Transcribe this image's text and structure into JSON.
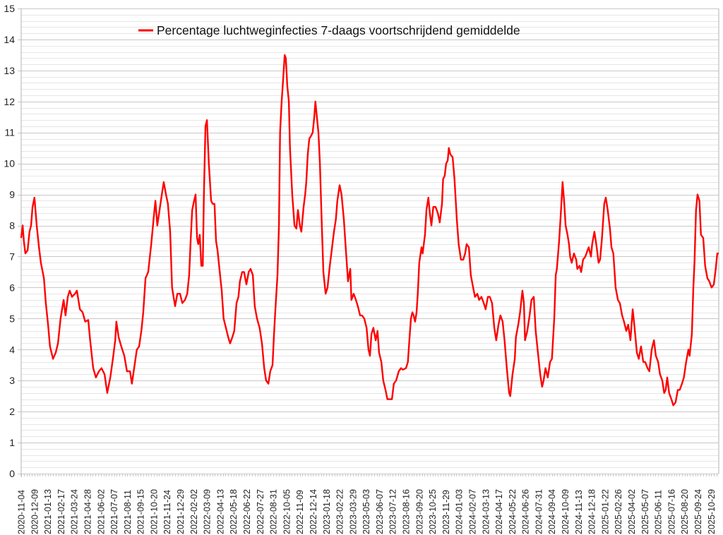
{
  "chart_data": {
    "type": "line",
    "title": "",
    "xlabel": "",
    "ylabel": "",
    "ylim": [
      0,
      15
    ],
    "y_ticks": [
      0,
      1,
      2,
      3,
      4,
      5,
      6,
      7,
      8,
      9,
      10,
      11,
      12,
      13,
      14,
      15
    ],
    "y_minor_step": 0.2,
    "grid": true,
    "legend_position": "top-center",
    "x_origin_date": "2020-11-04",
    "x_unit": "days since origin",
    "xlim_days": [
      0,
      1840
    ],
    "x_tick_step_days": 35,
    "x_tick_labels": [
      "2020-11-04",
      "2020-12-09",
      "2021-01-13",
      "2021-02-17",
      "2021-03-24",
      "2021-04-28",
      "2021-06-02",
      "2021-07-07",
      "2021-08-11",
      "2021-09-15",
      "2021-10-20",
      "2021-11-24",
      "2021-12-29",
      "2022-02-02",
      "2022-03-09",
      "2022-04-13",
      "2022-05-18",
      "2022-06-22",
      "2022-07-27",
      "2022-08-31",
      "2022-10-05",
      "2022-11-09",
      "2022-12-14",
      "2023-01-18",
      "2023-02-22",
      "2023-03-29",
      "2023-05-03",
      "2023-06-07",
      "2023-07-12",
      "2023-08-16",
      "2023-09-20",
      "2023-10-25",
      "2023-11-29",
      "2024-01-03",
      "2024-02-07",
      "2024-03-13",
      "2024-04-17",
      "2024-05-22",
      "2024-06-26",
      "2024-07-31",
      "2024-09-04",
      "2024-10-09",
      "2024-11-13",
      "2024-12-18",
      "2025-01-22",
      "2025-02-26",
      "2025-04-02",
      "2025-05-07",
      "2025-06-11",
      "2025-07-16",
      "2025-08-20",
      "2025-09-24",
      "2025-10-29"
    ],
    "series": [
      {
        "name": "Percentage luchtweginfecties 7-daags voortschrijdend gemiddelde",
        "color": "#ff0000",
        "x_days": [
          0,
          4,
          7,
          11,
          17,
          22,
          26,
          30,
          35,
          41,
          47,
          52,
          60,
          65,
          71,
          76,
          84,
          91,
          97,
          104,
          112,
          117,
          123,
          128,
          134,
          142,
          147,
          155,
          162,
          169,
          177,
          182,
          190,
          197,
          205,
          212,
          220,
          227,
          235,
          242,
          248,
          251,
          257,
          264,
          272,
          279,
          287,
          292,
          298,
          305,
          311,
          317,
          322,
          328,
          335,
          343,
          350,
          354,
          359,
          365,
          371,
          376,
          382,
          387,
          393,
          398,
          406,
          412,
          419,
          425,
          432,
          438,
          443,
          447,
          451,
          456,
          460,
          464,
          467,
          471,
          475,
          479,
          482,
          486,
          490,
          495,
          501,
          505,
          510,
          514,
          518,
          523,
          529,
          534,
          540,
          546,
          551,
          557,
          562,
          568,
          573,
          577,
          583,
          588,
          594,
          600,
          605,
          611,
          616,
          622,
          629,
          635,
          641,
          646,
          652,
          657,
          663,
          667,
          670,
          676,
          680,
          683,
          687,
          691,
          695,
          698,
          702,
          706,
          709,
          715,
          721,
          726,
          730,
          735,
          739,
          745,
          749,
          752,
          756,
          760,
          765,
          769,
          773,
          776,
          780,
          784,
          788,
          793,
          797,
          803,
          808,
          814,
          819,
          825,
          830,
          834,
          840,
          845,
          851,
          857,
          862,
          868,
          871,
          877,
          883,
          888,
          894,
          899,
          905,
          911,
          916,
          920,
          924,
          929,
          935,
          940,
          944,
          950,
          955,
          961,
          966,
          972,
          978,
          983,
          989,
          996,
          1002,
          1007,
          1015,
          1020,
          1024,
          1028,
          1032,
          1035,
          1039,
          1043,
          1046,
          1050,
          1056,
          1059,
          1065,
          1069,
          1074,
          1078,
          1082,
          1087,
          1093,
          1099,
          1104,
          1110,
          1113,
          1117,
          1121,
          1125,
          1128,
          1132,
          1138,
          1143,
          1149,
          1154,
          1160,
          1166,
          1171,
          1175,
          1181,
          1186,
          1192,
          1197,
          1203,
          1208,
          1214,
          1220,
          1225,
          1231,
          1236,
          1242,
          1248,
          1253,
          1259,
          1264,
          1270,
          1275,
          1281,
          1287,
          1290,
          1296,
          1302,
          1305,
          1311,
          1316,
          1322,
          1326,
          1329,
          1335,
          1341,
          1346,
          1352,
          1357,
          1363,
          1369,
          1374,
          1378,
          1383,
          1389,
          1395,
          1400,
          1406,
          1410,
          1413,
          1419,
          1424,
          1428,
          1432,
          1436,
          1441,
          1445,
          1448,
          1452,
          1458,
          1464,
          1467,
          1473,
          1477,
          1482,
          1488,
          1494,
          1497,
          1503,
          1506,
          1512,
          1518,
          1523,
          1527,
          1532,
          1538,
          1542,
          1547,
          1553,
          1557,
          1562,
          1568,
          1574,
          1579,
          1585,
          1590,
          1596,
          1601,
          1607,
          1613,
          1618,
          1624,
          1629,
          1635,
          1641,
          1646,
          1652,
          1657,
          1663,
          1669,
          1674,
          1680,
          1685,
          1691,
          1696,
          1700,
          1704,
          1709,
          1715,
          1720,
          1726,
          1732,
          1737,
          1743,
          1748,
          1754,
          1760,
          1763,
          1769,
          1773,
          1776,
          1780,
          1784,
          1789,
          1793,
          1799,
          1804,
          1810,
          1815,
          1821,
          1827,
          1832,
          1836,
          1840
        ],
        "y": [
          7.6,
          8.0,
          7.5,
          7.1,
          7.2,
          7.8,
          8.0,
          8.6,
          8.9,
          8.0,
          7.3,
          6.8,
          6.3,
          5.5,
          4.8,
          4.1,
          3.7,
          3.9,
          4.2,
          5.0,
          5.6,
          5.1,
          5.7,
          5.9,
          5.7,
          5.8,
          5.9,
          5.3,
          5.2,
          4.9,
          4.95,
          4.3,
          3.4,
          3.1,
          3.3,
          3.4,
          3.2,
          2.6,
          3.1,
          3.7,
          4.3,
          4.9,
          4.4,
          4.1,
          3.8,
          3.3,
          3.3,
          2.9,
          3.4,
          4.0,
          4.1,
          4.6,
          5.2,
          6.3,
          6.5,
          7.4,
          8.3,
          8.8,
          8.0,
          8.5,
          9.0,
          9.4,
          9.0,
          8.7,
          7.8,
          6.0,
          5.4,
          5.8,
          5.8,
          5.5,
          5.6,
          5.8,
          6.4,
          7.5,
          8.5,
          8.8,
          9.0,
          7.6,
          7.4,
          7.7,
          6.7,
          6.7,
          9.0,
          11.2,
          11.4,
          10.0,
          8.8,
          8.7,
          8.7,
          7.5,
          7.2,
          6.6,
          5.9,
          5.0,
          4.7,
          4.4,
          4.2,
          4.4,
          4.6,
          5.5,
          5.7,
          6.2,
          6.5,
          6.5,
          6.1,
          6.5,
          6.6,
          6.4,
          5.4,
          5.0,
          4.7,
          4.2,
          3.4,
          3.0,
          2.9,
          3.3,
          3.5,
          4.5,
          5.2,
          6.4,
          8.0,
          11.0,
          12.0,
          12.7,
          13.5,
          13.4,
          12.5,
          12.0,
          10.5,
          9.0,
          8.0,
          7.9,
          8.5,
          8.0,
          7.8,
          8.6,
          9.0,
          9.4,
          10.3,
          10.8,
          10.9,
          11.0,
          11.5,
          12.0,
          11.5,
          11.0,
          10.0,
          8.0,
          6.5,
          5.8,
          6.0,
          6.7,
          7.2,
          7.8,
          8.2,
          8.8,
          9.3,
          9.0,
          8.2,
          7.1,
          6.2,
          6.6,
          5.6,
          5.8,
          5.6,
          5.4,
          5.1,
          5.1,
          5.0,
          4.7,
          4.0,
          3.8,
          4.5,
          4.7,
          4.3,
          4.6,
          3.9,
          3.6,
          3.0,
          2.7,
          2.4,
          2.4,
          2.4,
          2.9,
          3.0,
          3.3,
          3.4,
          3.35,
          3.4,
          3.6,
          4.3,
          5.0,
          5.2,
          5.1,
          4.9,
          5.2,
          5.8,
          6.8,
          7.3,
          7.1,
          7.7,
          8.5,
          8.9,
          8.4,
          8.0,
          8.6,
          8.6,
          8.4,
          8.1,
          8.7,
          9.5,
          9.6,
          10.0,
          10.1,
          10.5,
          10.3,
          10.2,
          9.5,
          8.2,
          7.4,
          6.9,
          6.9,
          7.1,
          7.4,
          7.3,
          6.4,
          6.0,
          5.7,
          5.8,
          5.6,
          5.7,
          5.5,
          5.3,
          5.7,
          5.7,
          5.5,
          4.7,
          4.3,
          4.8,
          5.1,
          4.9,
          4.3,
          3.4,
          2.6,
          2.5,
          3.2,
          3.7,
          4.4,
          4.8,
          5.2,
          5.9,
          5.5,
          4.3,
          4.6,
          5.1,
          5.6,
          5.7,
          4.6,
          3.9,
          3.2,
          2.8,
          3.0,
          3.4,
          3.1,
          3.6,
          3.7,
          5.0,
          6.4,
          6.6,
          7.5,
          8.5,
          9.4,
          8.8,
          8.0,
          7.7,
          7.4,
          7.0,
          6.8,
          7.1,
          6.9,
          6.6,
          6.7,
          6.5,
          6.9,
          7.0,
          7.2,
          7.3,
          7.0,
          7.4,
          7.8,
          7.3,
          6.8,
          6.9,
          7.6,
          8.7,
          8.9,
          8.5,
          7.9,
          7.3,
          7.1,
          6.0,
          5.6,
          5.5,
          5.1,
          4.9,
          4.6,
          4.8,
          4.3,
          5.3,
          4.7,
          3.9,
          3.7,
          4.1,
          3.6,
          3.6,
          3.4,
          3.3,
          4.0,
          4.3,
          3.8,
          3.6,
          3.2,
          3.0,
          2.6,
          2.7,
          3.1,
          2.6,
          2.4,
          2.2,
          2.3,
          2.7,
          2.7,
          2.9,
          3.1,
          3.6,
          4.0,
          3.8,
          4.5,
          6.0,
          6.8,
          8.5,
          9.0,
          8.8,
          7.7,
          7.6,
          6.7,
          6.3,
          6.2,
          6.0,
          6.1,
          6.6,
          7.1,
          7.1
        ]
      }
    ]
  }
}
